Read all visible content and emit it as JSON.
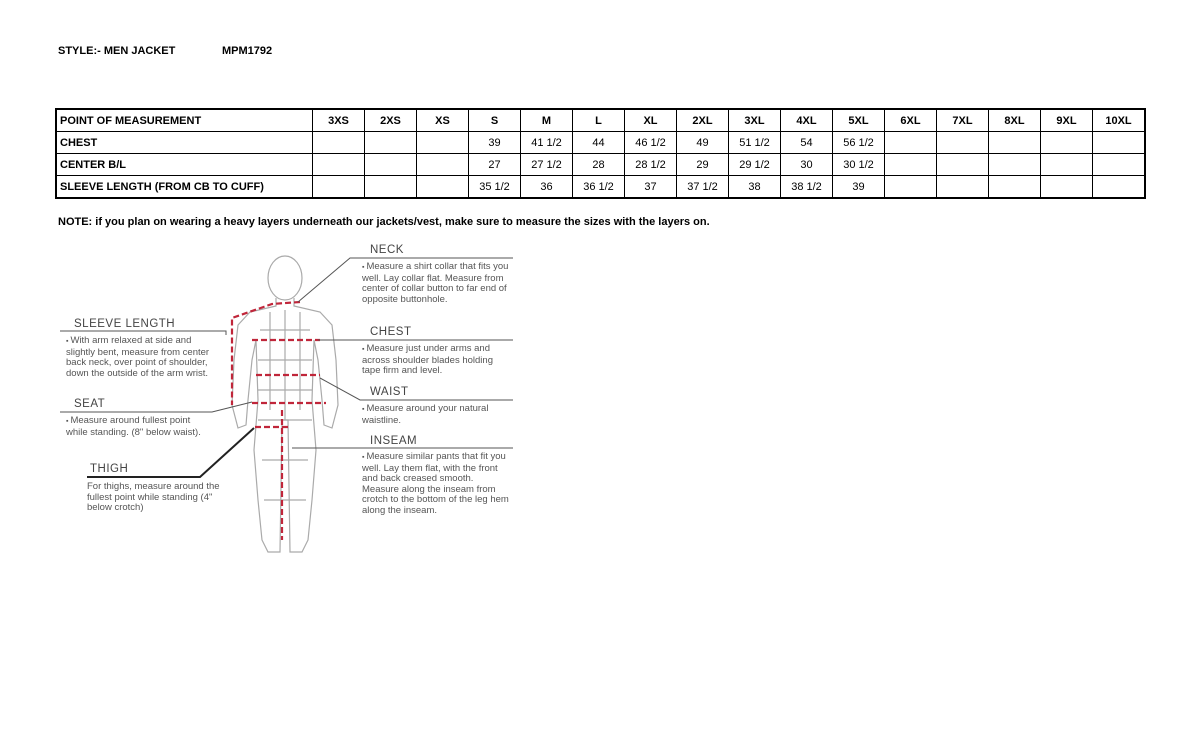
{
  "header": {
    "style_label": "STYLE:- MEN JACKET",
    "style_code": "MPM1792"
  },
  "table": {
    "columns": [
      "POINT OF MEASUREMENT",
      "3XS",
      "2XS",
      "XS",
      "S",
      "M",
      "L",
      "XL",
      "2XL",
      "3XL",
      "4XL",
      "5XL",
      "6XL",
      "7XL",
      "8XL",
      "9XL",
      "10XL"
    ],
    "rows": [
      [
        "CHEST",
        "",
        "",
        "",
        "39",
        "41 1/2",
        "44",
        "46 1/2",
        "49",
        "51 1/2",
        "54",
        "56 1/2",
        "",
        "",
        "",
        "",
        ""
      ],
      [
        "CENTER B/L",
        "",
        "",
        "",
        "27",
        "27 1/2",
        "28",
        "28 1/2",
        "29",
        "29 1/2",
        "30",
        "30 1/2",
        "",
        "",
        "",
        "",
        ""
      ],
      [
        "SLEEVE LENGTH (FROM CB TO CUFF)",
        "",
        "",
        "",
        "35 1/2",
        "36",
        "36 1/2",
        "37",
        "37 1/2",
        "38",
        "38 1/2",
        "39",
        "",
        "",
        "",
        "",
        ""
      ]
    ]
  },
  "note": "NOTE: if you plan on wearing a heavy layers underneath our jackets/vest, make sure to measure the sizes with the layers on.",
  "diagram": {
    "neck": {
      "title": "NECK",
      "text": "Measure a shirt collar that fits you well. Lay collar flat. Measure from center of collar button to far end of opposite buttonhole."
    },
    "chest": {
      "title": "CHEST",
      "text": "Measure just under arms and across shoulder blades holding tape firm and level."
    },
    "waist": {
      "title": "WAIST",
      "text": "Measure around your natural waistline."
    },
    "inseam": {
      "title": "INSEAM",
      "text": "Measure similar pants that fit you well. Lay them flat, with the front and back creased smooth. Measure along the inseam from crotch to the bottom of the leg hem along the inseam."
    },
    "sleeve": {
      "title": "SLEEVE LENGTH",
      "text": "With arm relaxed at side and slightly bent, measure from center back neck, over point of shoulder, down the outside of the arm wrist."
    },
    "seat": {
      "title": "SEAT",
      "text": "Measure around fullest point while standing. (8\" below waist)."
    },
    "thigh": {
      "title": "THIGH",
      "text": "For thighs, measure around the fullest point while standing (4\" below crotch)"
    },
    "measure_color": "#c0263a"
  }
}
